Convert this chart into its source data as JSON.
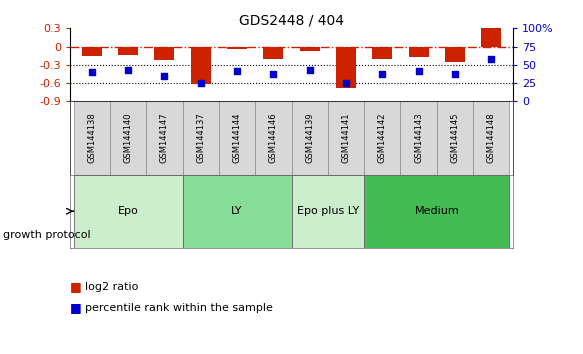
{
  "title": "GDS2448 / 404",
  "samples": [
    "GSM144138",
    "GSM144140",
    "GSM144147",
    "GSM144137",
    "GSM144144",
    "GSM144146",
    "GSM144139",
    "GSM144141",
    "GSM144142",
    "GSM144143",
    "GSM144145",
    "GSM144148"
  ],
  "log2_ratio": [
    -0.15,
    -0.13,
    -0.22,
    -0.62,
    -0.04,
    -0.2,
    -0.07,
    -0.68,
    -0.2,
    -0.17,
    -0.25,
    0.3
  ],
  "percentile_rank": [
    40,
    43,
    35,
    25,
    42,
    38,
    43,
    25,
    37,
    41,
    38,
    58
  ],
  "ylim": [
    -0.9,
    0.3
  ],
  "yticks_left": [
    -0.9,
    -0.6,
    -0.3,
    0.0,
    0.3
  ],
  "yticks_right": [
    0,
    25,
    50,
    75,
    100
  ],
  "bar_color": "#cc2200",
  "dot_color": "#0000cc",
  "hline_color": "#cc2200",
  "group_configs": [
    {
      "name": "Epo",
      "start": 0,
      "end": 3,
      "color": "#cceecc"
    },
    {
      "name": "LY",
      "start": 3,
      "end": 6,
      "color": "#88dd99"
    },
    {
      "name": "Epo plus LY",
      "start": 6,
      "end": 8,
      "color": "#cceecc"
    },
    {
      "name": "Medium",
      "start": 8,
      "end": 12,
      "color": "#44bb55"
    }
  ],
  "group_label": "growth protocol"
}
